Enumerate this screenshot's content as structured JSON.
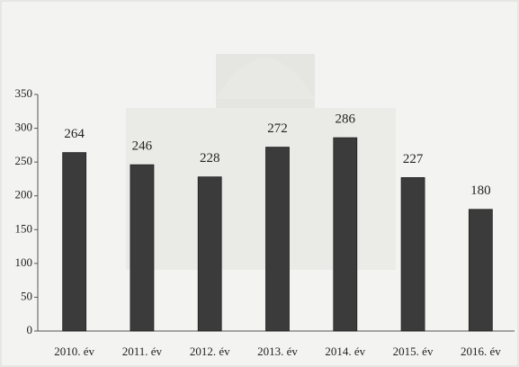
{
  "chart_data": {
    "type": "bar",
    "categories": [
      "2010. év",
      "2011. év",
      "2012. év",
      "2013. év",
      "2014. év",
      "2015. év",
      "2016. év"
    ],
    "values": [
      264,
      246,
      228,
      272,
      286,
      227,
      180
    ],
    "color": "#3b3b3b",
    "ylim": [
      0,
      350
    ],
    "yticks": [
      0,
      50,
      100,
      150,
      200,
      250,
      300,
      350
    ],
    "grid": false
  }
}
